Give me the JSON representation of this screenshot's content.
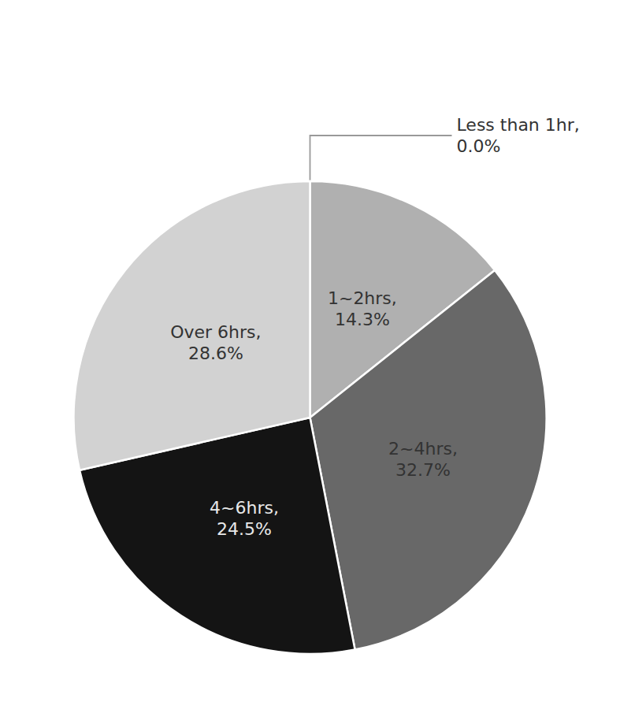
{
  "chart_data": {
    "type": "pie",
    "categories": [
      "Less than 1hr,\n0.0%",
      "1~2hrs,\n14.3%",
      "2~4hrs,\n32.7%",
      "4~6hrs,\n24.5%",
      "Over 6hrs,\n28.6%"
    ],
    "values": [
      0.0,
      14.3,
      32.7,
      24.5,
      28.6
    ],
    "colors": [
      "#c8c8c8",
      "#b0b0b0",
      "#686868",
      "#141414",
      "#d2d2d2"
    ],
    "data_labels": true,
    "annotation": "Less than 1hr,\n0.0%"
  }
}
